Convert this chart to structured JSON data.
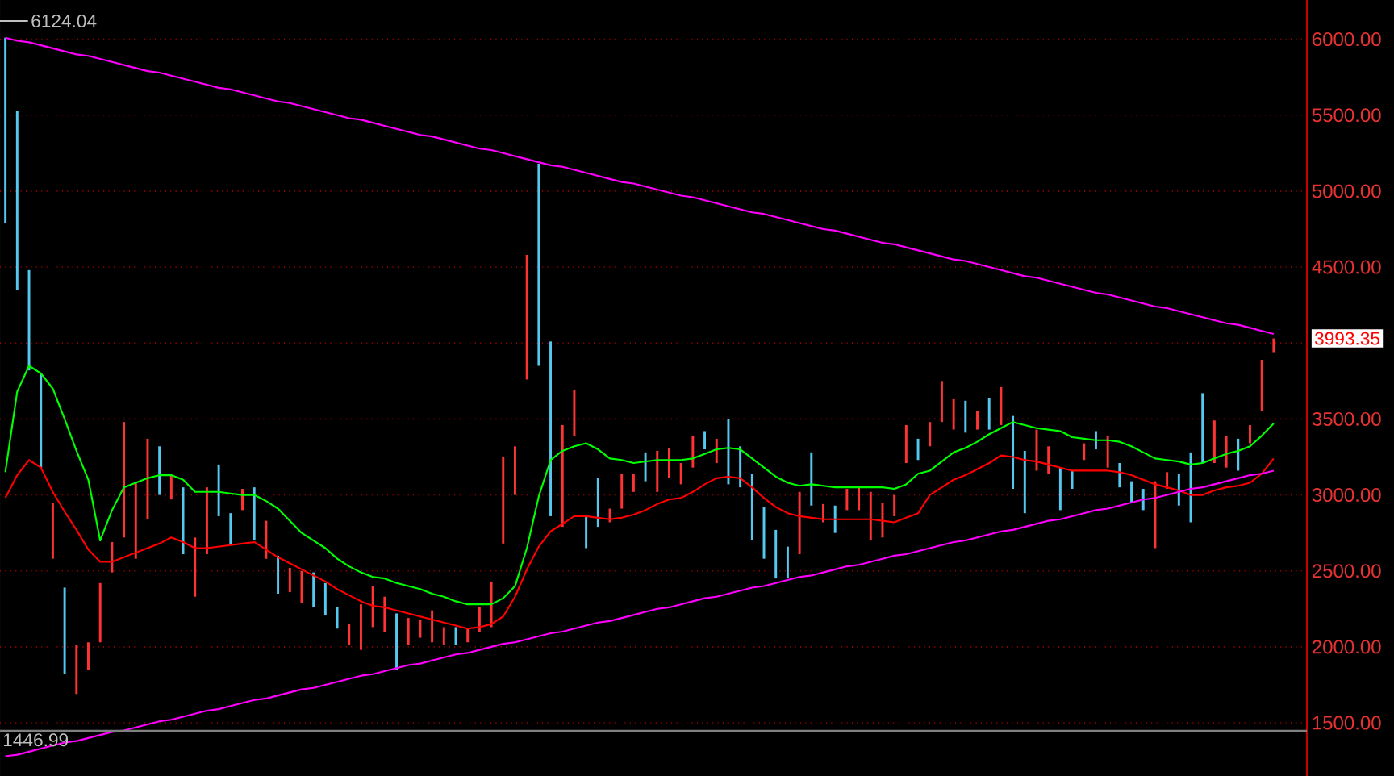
{
  "chart_data": {
    "type": "bar",
    "categories": [
      null,
      null,
      null,
      null,
      null,
      null,
      null,
      null,
      null,
      null,
      null,
      null,
      null,
      null,
      null,
      null,
      null,
      null,
      null,
      null,
      null,
      null,
      null,
      null,
      null,
      null,
      null,
      null,
      null,
      null,
      null,
      null,
      null,
      null,
      null,
      null,
      null,
      null,
      null,
      null,
      null,
      null,
      null,
      null,
      null,
      null,
      null,
      null,
      null,
      null,
      null,
      null,
      null,
      null,
      null,
      null,
      null,
      null,
      null,
      null,
      null,
      null,
      null,
      null,
      null,
      null,
      null,
      null,
      null,
      null,
      null,
      null,
      null,
      null,
      null,
      null,
      null,
      null,
      null,
      null,
      null,
      null,
      null,
      null,
      null,
      null,
      null,
      null,
      null,
      null,
      null,
      null,
      null,
      null,
      null,
      null,
      null,
      null,
      null,
      null,
      null,
      null,
      null,
      null,
      null,
      null,
      null,
      null
    ],
    "series": [
      {
        "base": [
          4790,
          4350,
          3820,
          3180,
          2580,
          1820,
          1690,
          1850,
          2030,
          2490,
          2720,
          2580,
          2840,
          3000,
          2970,
          2610,
          2330,
          2610,
          2860,
          2670,
          2900,
          2700,
          2580,
          2350,
          2360,
          2290,
          2260,
          2210,
          2120,
          2010,
          1980,
          2130,
          2100,
          1850,
          2010,
          2060,
          2030,
          2010,
          2010,
          2030,
          2100,
          2130,
          2680,
          3000,
          3760,
          3850,
          2860,
          2790,
          3390,
          2650,
          2790,
          2820,
          2910,
          3020,
          3090,
          3020,
          3110,
          3070,
          3180,
          3300,
          3210,
          3070,
          3050,
          2700,
          2580,
          2450,
          2450,
          2610,
          2930,
          2820,
          2750,
          2900,
          2900,
          2700,
          2720,
          2860,
          3210,
          3230,
          3320,
          3480,
          3430,
          3410,
          3430,
          3430,
          3460,
          3040,
          2880,
          3160,
          3140,
          2900,
          3040,
          3230,
          3300,
          3180,
          3050,
          2950,
          2900,
          2650,
          3040,
          2930,
          2820,
          3210,
          3210,
          3180,
          3160,
          3340,
          3550,
          3940
        ],
        "values": [
          1220,
          1180,
          660,
          620,
          370,
          570,
          320,
          180,
          390,
          200,
          760,
          500,
          530,
          320,
          160,
          440,
          390,
          440,
          340,
          210,
          140,
          350,
          250,
          250,
          160,
          210,
          230,
          210,
          140,
          140,
          300,
          270,
          230,
          370,
          180,
          120,
          210,
          120,
          120,
          90,
          160,
          300,
          570,
          320,
          820,
          1330,
          1150,
          670,
          300,
          210,
          320,
          90,
          230,
          120,
          190,
          270,
          200,
          140,
          210,
          120,
          160,
          430,
          270,
          440,
          340,
          320,
          210,
          410,
          350,
          120,
          180,
          140,
          160,
          320,
          230,
          140,
          250,
          140,
          160,
          270,
          200,
          210,
          120,
          210,
          250,
          480,
          410,
          270,
          180,
          280,
          120,
          110,
          120,
          210,
          160,
          140,
          140,
          440,
          110,
          210,
          460,
          460,
          280,
          210,
          210,
          120,
          340,
          90
        ],
        "colors": [
          "#55c8f0",
          "#55c8f0",
          "#55c8f0",
          "#55c8f0",
          "#ff3333",
          "#55c8f0",
          "#ff3333",
          "#ff3333",
          "#ff3333",
          "#ff3333",
          "#ff3333",
          "#ff3333",
          "#ff3333",
          "#55c8f0",
          "#ff3333",
          "#55c8f0",
          "#ff3333",
          "#ff3333",
          "#55c8f0",
          "#55c8f0",
          "#ff3333",
          "#55c8f0",
          "#ff3333",
          "#55c8f0",
          "#ff3333",
          "#ff3333",
          "#55c8f0",
          "#55c8f0",
          "#55c8f0",
          "#ff3333",
          "#ff3333",
          "#ff3333",
          "#ff3333",
          "#55c8f0",
          "#ff3333",
          "#ff3333",
          "#ff3333",
          "#ff3333",
          "#55c8f0",
          "#ff3333",
          "#ff3333",
          "#ff3333",
          "#ff3333",
          "#ff3333",
          "#ff3333",
          "#55c8f0",
          "#55c8f0",
          "#ff3333",
          "#ff3333",
          "#55c8f0",
          "#55c8f0",
          "#ff3333",
          "#ff3333",
          "#ff3333",
          "#55c8f0",
          "#ff3333",
          "#ff3333",
          "#ff3333",
          "#ff3333",
          "#55c8f0",
          "#ff3333",
          "#55c8f0",
          "#55c8f0",
          "#55c8f0",
          "#55c8f0",
          "#55c8f0",
          "#55c8f0",
          "#ff3333",
          "#55c8f0",
          "#ff3333",
          "#55c8f0",
          "#ff3333",
          "#ff3333",
          "#ff3333",
          "#ff3333",
          "#ff3333",
          "#ff3333",
          "#55c8f0",
          "#ff3333",
          "#ff3333",
          "#ff3333",
          "#55c8f0",
          "#ff3333",
          "#55c8f0",
          "#ff3333",
          "#55c8f0",
          "#55c8f0",
          "#ff3333",
          "#ff3333",
          "#55c8f0",
          "#55c8f0",
          "#ff3333",
          "#55c8f0",
          "#ff3333",
          "#55c8f0",
          "#55c8f0",
          "#55c8f0",
          "#ff3333",
          "#ff3333",
          "#55c8f0",
          "#55c8f0",
          "#55c8f0",
          "#ff3333",
          "#ff3333",
          "#55c8f0",
          "#ff3333",
          "#ff3333",
          "#ff3333"
        ]
      },
      {
        "type": "line",
        "color": "#00ff00",
        "values": [
          3150,
          3680,
          3850,
          3800,
          3700,
          3500,
          3290,
          3100,
          2700,
          2900,
          3050,
          3080,
          3110,
          3130,
          3130,
          3100,
          3020,
          3020,
          3020,
          3010,
          3000,
          3000,
          2960,
          2910,
          2830,
          2750,
          2700,
          2650,
          2580,
          2530,
          2490,
          2460,
          2450,
          2420,
          2400,
          2380,
          2350,
          2330,
          2300,
          2280,
          2280,
          2280,
          2320,
          2400,
          2650,
          2990,
          3230,
          3290,
          3320,
          3340,
          3300,
          3240,
          3230,
          3210,
          3220,
          3230,
          3230,
          3230,
          3240,
          3270,
          3300,
          3310,
          3300,
          3240,
          3180,
          3120,
          3080,
          3060,
          3070,
          3060,
          3050,
          3050,
          3050,
          3050,
          3050,
          3040,
          3070,
          3140,
          3160,
          3220,
          3280,
          3310,
          3350,
          3400,
          3440,
          3480,
          3460,
          3440,
          3430,
          3420,
          3380,
          3370,
          3360,
          3360,
          3350,
          3320,
          3280,
          3240,
          3230,
          3220,
          3200,
          3210,
          3240,
          3270,
          3290,
          3320,
          3390,
          3470
        ]
      },
      {
        "type": "line",
        "color": "#ff0000",
        "values": [
          2980,
          3130,
          3230,
          3180,
          3020,
          2890,
          2770,
          2640,
          2560,
          2560,
          2590,
          2620,
          2650,
          2680,
          2720,
          2690,
          2650,
          2650,
          2660,
          2670,
          2680,
          2690,
          2640,
          2590,
          2550,
          2510,
          2470,
          2430,
          2380,
          2340,
          2300,
          2270,
          2260,
          2240,
          2220,
          2200,
          2180,
          2160,
          2140,
          2120,
          2130,
          2150,
          2200,
          2330,
          2510,
          2660,
          2760,
          2810,
          2860,
          2860,
          2850,
          2840,
          2850,
          2870,
          2900,
          2940,
          2970,
          2980,
          3020,
          3070,
          3110,
          3120,
          3110,
          3050,
          2980,
          2920,
          2880,
          2860,
          2850,
          2840,
          2840,
          2840,
          2840,
          2840,
          2830,
          2820,
          2850,
          2880,
          3000,
          3050,
          3100,
          3130,
          3170,
          3210,
          3260,
          3250,
          3230,
          3220,
          3200,
          3180,
          3160,
          3160,
          3160,
          3160,
          3150,
          3130,
          3100,
          3070,
          3050,
          3030,
          3000,
          3000,
          3030,
          3050,
          3060,
          3080,
          3140,
          3240
        ]
      },
      {
        "type": "line",
        "color": "#ff00ff",
        "values": [
          6010,
          5990,
          5980,
          5960,
          5940,
          5920,
          5900,
          5890,
          5870,
          5850,
          5830,
          5810,
          5790,
          5780,
          5760,
          5740,
          5720,
          5700,
          5680,
          5670,
          5650,
          5630,
          5610,
          5590,
          5580,
          5560,
          5540,
          5520,
          5500,
          5480,
          5470,
          5450,
          5430,
          5410,
          5390,
          5370,
          5360,
          5340,
          5320,
          5300,
          5280,
          5270,
          5250,
          5230,
          5210,
          5190,
          5170,
          5160,
          5140,
          5120,
          5100,
          5080,
          5060,
          5050,
          5030,
          5010,
          4990,
          4970,
          4960,
          4940,
          4920,
          4900,
          4880,
          4860,
          4850,
          4830,
          4810,
          4790,
          4770,
          4750,
          4740,
          4720,
          4700,
          4680,
          4660,
          4650,
          4630,
          4610,
          4590,
          4570,
          4550,
          4540,
          4520,
          4500,
          4480,
          4460,
          4440,
          4430,
          4410,
          4390,
          4370,
          4350,
          4330,
          4320,
          4300,
          4280,
          4260,
          4240,
          4230,
          4210,
          4190,
          4170,
          4150,
          4130,
          4120,
          4100,
          4080,
          4060
        ]
      },
      {
        "type": "line",
        "color": "#ff00ff",
        "values": [
          1280,
          1290,
          1310,
          1330,
          1350,
          1370,
          1380,
          1400,
          1420,
          1440,
          1450,
          1470,
          1490,
          1510,
          1520,
          1540,
          1560,
          1580,
          1590,
          1610,
          1630,
          1650,
          1660,
          1680,
          1700,
          1720,
          1730,
          1750,
          1770,
          1790,
          1810,
          1820,
          1840,
          1860,
          1880,
          1890,
          1910,
          1930,
          1950,
          1960,
          1980,
          2000,
          2020,
          2030,
          2050,
          2070,
          2090,
          2100,
          2120,
          2140,
          2160,
          2170,
          2190,
          2210,
          2230,
          2250,
          2260,
          2280,
          2300,
          2320,
          2330,
          2350,
          2370,
          2390,
          2400,
          2420,
          2440,
          2460,
          2470,
          2490,
          2510,
          2530,
          2540,
          2560,
          2580,
          2600,
          2610,
          2630,
          2650,
          2670,
          2690,
          2700,
          2720,
          2740,
          2760,
          2770,
          2790,
          2810,
          2830,
          2840,
          2860,
          2880,
          2900,
          2910,
          2930,
          2950,
          2970,
          2980,
          3000,
          3020,
          3040,
          3050,
          3070,
          3090,
          3110,
          3130,
          3140,
          3160
        ]
      }
    ],
    "ylim": [
      1150,
      6258
    ],
    "yticks": [
      {
        "value": 1500,
        "label": "1500.00"
      },
      {
        "value": 2000,
        "label": "2000.00"
      },
      {
        "value": 2500,
        "label": "2500.00"
      },
      {
        "value": 3000,
        "label": "3000.00"
      },
      {
        "value": 3500,
        "label": "3500.00"
      },
      {
        "value": 4000,
        "label": null
      },
      {
        "value": 4500,
        "label": "4500.00"
      },
      {
        "value": 5000,
        "label": "5000.00"
      },
      {
        "value": 5500,
        "label": "5500.00"
      },
      {
        "value": 6000,
        "label": "6000.00"
      }
    ],
    "grid": "y",
    "tick_labels": "y",
    "ref_lines": [
      {
        "axis": "y",
        "value": 1446.99,
        "label": "1446.99",
        "color": "#808080"
      }
    ],
    "annotations": [
      "6124.04",
      "3993.35"
    ]
  }
}
